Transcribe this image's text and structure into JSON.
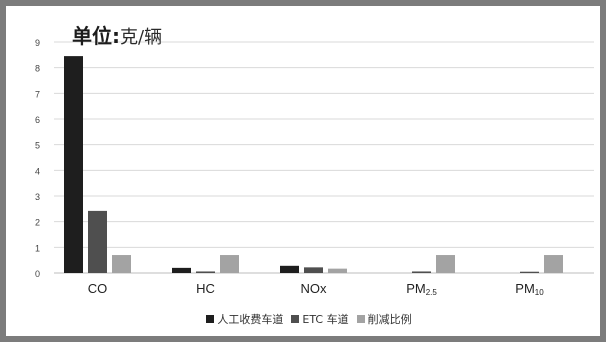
{
  "chart_data": {
    "type": "bar",
    "unit_label": "单位:",
    "unit_value": "克/辆",
    "categories": [
      "CO",
      "HC",
      "NOx",
      "PM2.5",
      "PM10"
    ],
    "category_labels": [
      {
        "base": "CO",
        "sub": ""
      },
      {
        "base": "HC",
        "sub": ""
      },
      {
        "base": "NOx",
        "sub": ""
      },
      {
        "base": "PM",
        "sub": "2.5"
      },
      {
        "base": "PM",
        "sub": "10"
      }
    ],
    "series": [
      {
        "name": "人工收费车道",
        "color": "#1e1e1e",
        "values": [
          8.45,
          0.2,
          0.28,
          0.0,
          0.0
        ]
      },
      {
        "name": "ETC 车道",
        "color": "#4f4f4f",
        "values": [
          2.42,
          0.06,
          0.22,
          0.06,
          0.05
        ]
      },
      {
        "name": "削减比例",
        "color": "#a3a3a3",
        "values": [
          0.7,
          0.7,
          0.17,
          0.7,
          0.7
        ]
      }
    ],
    "ylim": [
      0,
      9
    ],
    "yticks": [
      "0",
      "1",
      "2",
      "3",
      "4",
      "5",
      "6",
      "7",
      "8",
      "9"
    ],
    "grid": true,
    "legend_position": "bottom"
  }
}
